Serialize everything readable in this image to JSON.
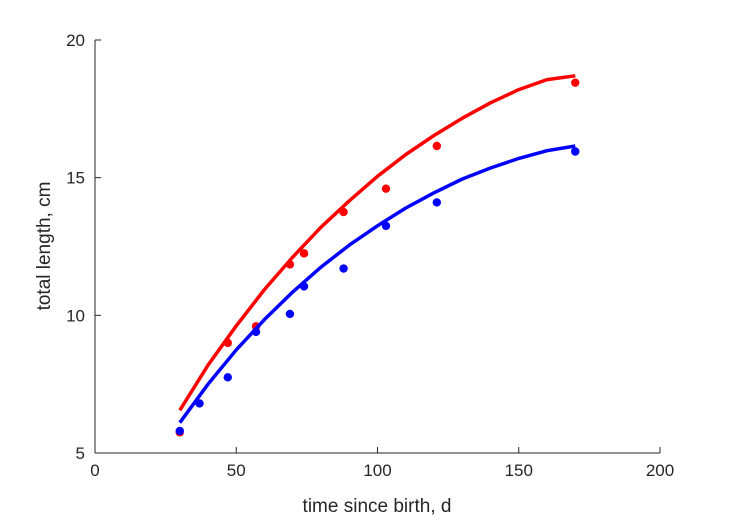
{
  "chart_data": {
    "type": "scatter",
    "title": "",
    "xlabel": "time since birth, d",
    "ylabel": "total length, cm",
    "xlim": [
      0,
      200
    ],
    "ylim": [
      5,
      20
    ],
    "xticks": [
      0,
      50,
      100,
      150,
      200
    ],
    "yticks": [
      5,
      10,
      15,
      20
    ],
    "xtick_labels": [
      "0",
      "50",
      "100",
      "150",
      "200"
    ],
    "ytick_labels": [
      "5",
      "10",
      "15",
      "20"
    ],
    "grid": false,
    "legend": "none",
    "series": [
      {
        "color": "#ff0000",
        "points": {
          "x": [
            30,
            47,
            57,
            69,
            74,
            88,
            103,
            121,
            170
          ],
          "y": [
            5.75,
            9.0,
            9.6,
            11.85,
            12.25,
            13.75,
            14.6,
            16.15,
            18.45
          ]
        },
        "fit_line": {
          "x": [
            30,
            40,
            50,
            60,
            70,
            80,
            90,
            100,
            110,
            120,
            130,
            140,
            150,
            160,
            170
          ],
          "y": [
            6.55,
            8.19,
            9.62,
            10.94,
            12.12,
            13.2,
            14.16,
            15.05,
            15.84,
            16.53,
            17.16,
            17.72,
            18.2,
            18.56,
            18.7
          ]
        }
      },
      {
        "color": "#0000ff",
        "points": {
          "x": [
            30,
            37,
            47,
            57,
            69,
            74,
            88,
            103,
            121,
            170
          ],
          "y": [
            5.8,
            6.8,
            7.75,
            9.4,
            10.05,
            11.05,
            11.7,
            13.25,
            14.1,
            15.95
          ]
        },
        "fit_line": {
          "x": [
            30,
            40,
            50,
            60,
            70,
            80,
            90,
            100,
            110,
            120,
            130,
            140,
            150,
            160,
            170
          ],
          "y": [
            6.1,
            7.5,
            8.75,
            9.85,
            10.85,
            11.75,
            12.55,
            13.25,
            13.9,
            14.45,
            14.95,
            15.35,
            15.7,
            15.98,
            16.15
          ]
        }
      }
    ]
  }
}
